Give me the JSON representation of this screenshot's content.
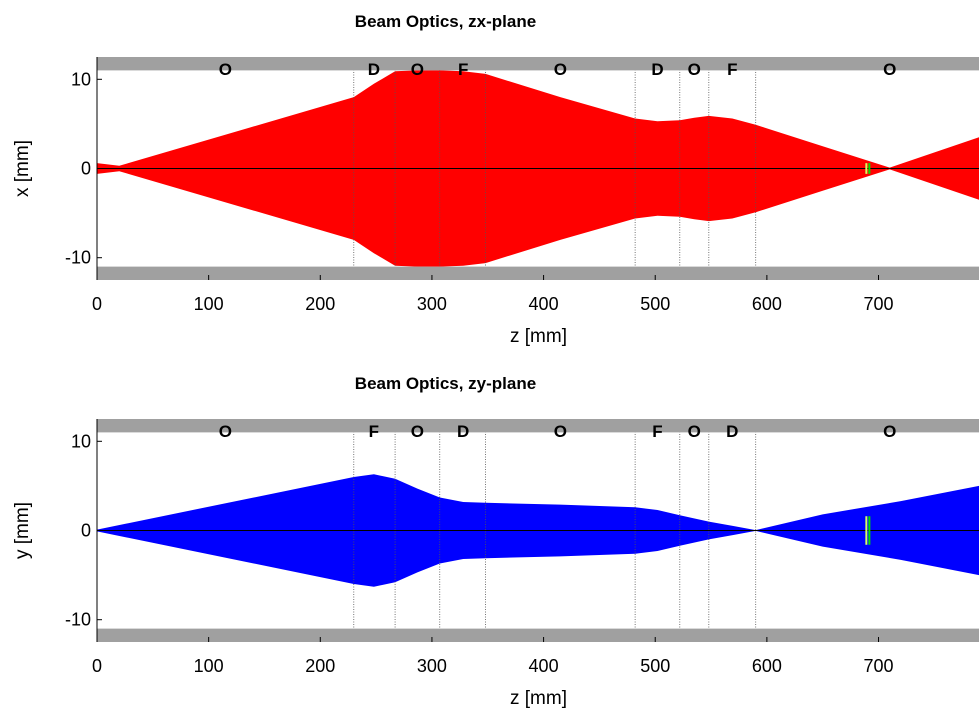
{
  "chart_data": [
    {
      "type": "area",
      "title": "Beam Optics, zx-plane",
      "xlabel": "z [mm]",
      "ylabel": "x [mm]",
      "xlim": [
        0,
        790
      ],
      "ylim": [
        -12.5,
        12.5
      ],
      "xticks": [
        0,
        100,
        200,
        300,
        400,
        500,
        600,
        700
      ],
      "yticks": [
        -10,
        0,
        10
      ],
      "aperture_mm": 11,
      "element_boundaries": [
        230,
        267,
        307,
        348,
        482,
        522,
        548,
        590
      ],
      "element_labels": [
        {
          "z": 115,
          "label": "O"
        },
        {
          "z": 248,
          "label": "D"
        },
        {
          "z": 287,
          "label": "O"
        },
        {
          "z": 328,
          "label": "F"
        },
        {
          "z": 415,
          "label": "O"
        },
        {
          "z": 502,
          "label": "D"
        },
        {
          "z": 535,
          "label": "O"
        },
        {
          "z": 569,
          "label": "F"
        },
        {
          "z": 710,
          "label": "O"
        }
      ],
      "series": [
        {
          "color": "#ff0000",
          "x": [
            0,
            20,
            230,
            248,
            267,
            287,
            307,
            328,
            348,
            415,
            482,
            502,
            522,
            535,
            548,
            569,
            590,
            650,
            710,
            790
          ],
          "envelope": [
            0.6,
            0.3,
            8.0,
            9.5,
            10.9,
            11.0,
            11.0,
            10.9,
            10.6,
            8.0,
            5.6,
            5.3,
            5.4,
            5.7,
            5.9,
            5.6,
            4.9,
            2.5,
            0.1,
            3.5
          ]
        }
      ],
      "marker": {
        "z": 690,
        "color": "#00e000",
        "halfheight": 0.6
      }
    },
    {
      "type": "area",
      "title": "Beam Optics, zy-plane",
      "xlabel": "z [mm]",
      "ylabel": "y [mm]",
      "xlim": [
        0,
        790
      ],
      "ylim": [
        -12.5,
        12.5
      ],
      "xticks": [
        0,
        100,
        200,
        300,
        400,
        500,
        600,
        700
      ],
      "yticks": [
        -10,
        0,
        10
      ],
      "aperture_mm": 11,
      "element_boundaries": [
        230,
        267,
        307,
        348,
        482,
        522,
        548,
        590
      ],
      "element_labels": [
        {
          "z": 115,
          "label": "O"
        },
        {
          "z": 248,
          "label": "F"
        },
        {
          "z": 287,
          "label": "O"
        },
        {
          "z": 328,
          "label": "D"
        },
        {
          "z": 415,
          "label": "O"
        },
        {
          "z": 502,
          "label": "F"
        },
        {
          "z": 535,
          "label": "O"
        },
        {
          "z": 569,
          "label": "D"
        },
        {
          "z": 710,
          "label": "O"
        }
      ],
      "series": [
        {
          "color": "#0000ff",
          "x": [
            0,
            230,
            248,
            267,
            287,
            307,
            328,
            348,
            415,
            482,
            502,
            522,
            548,
            570,
            590,
            650,
            720,
            790
          ],
          "envelope": [
            0.1,
            6.0,
            6.3,
            5.8,
            4.7,
            3.7,
            3.2,
            3.1,
            2.9,
            2.6,
            2.3,
            1.7,
            1.0,
            0.5,
            0.05,
            1.8,
            3.3,
            5.0
          ]
        }
      ],
      "marker": {
        "z": 690,
        "color": "#00e000",
        "halfheight": 1.6
      }
    }
  ]
}
